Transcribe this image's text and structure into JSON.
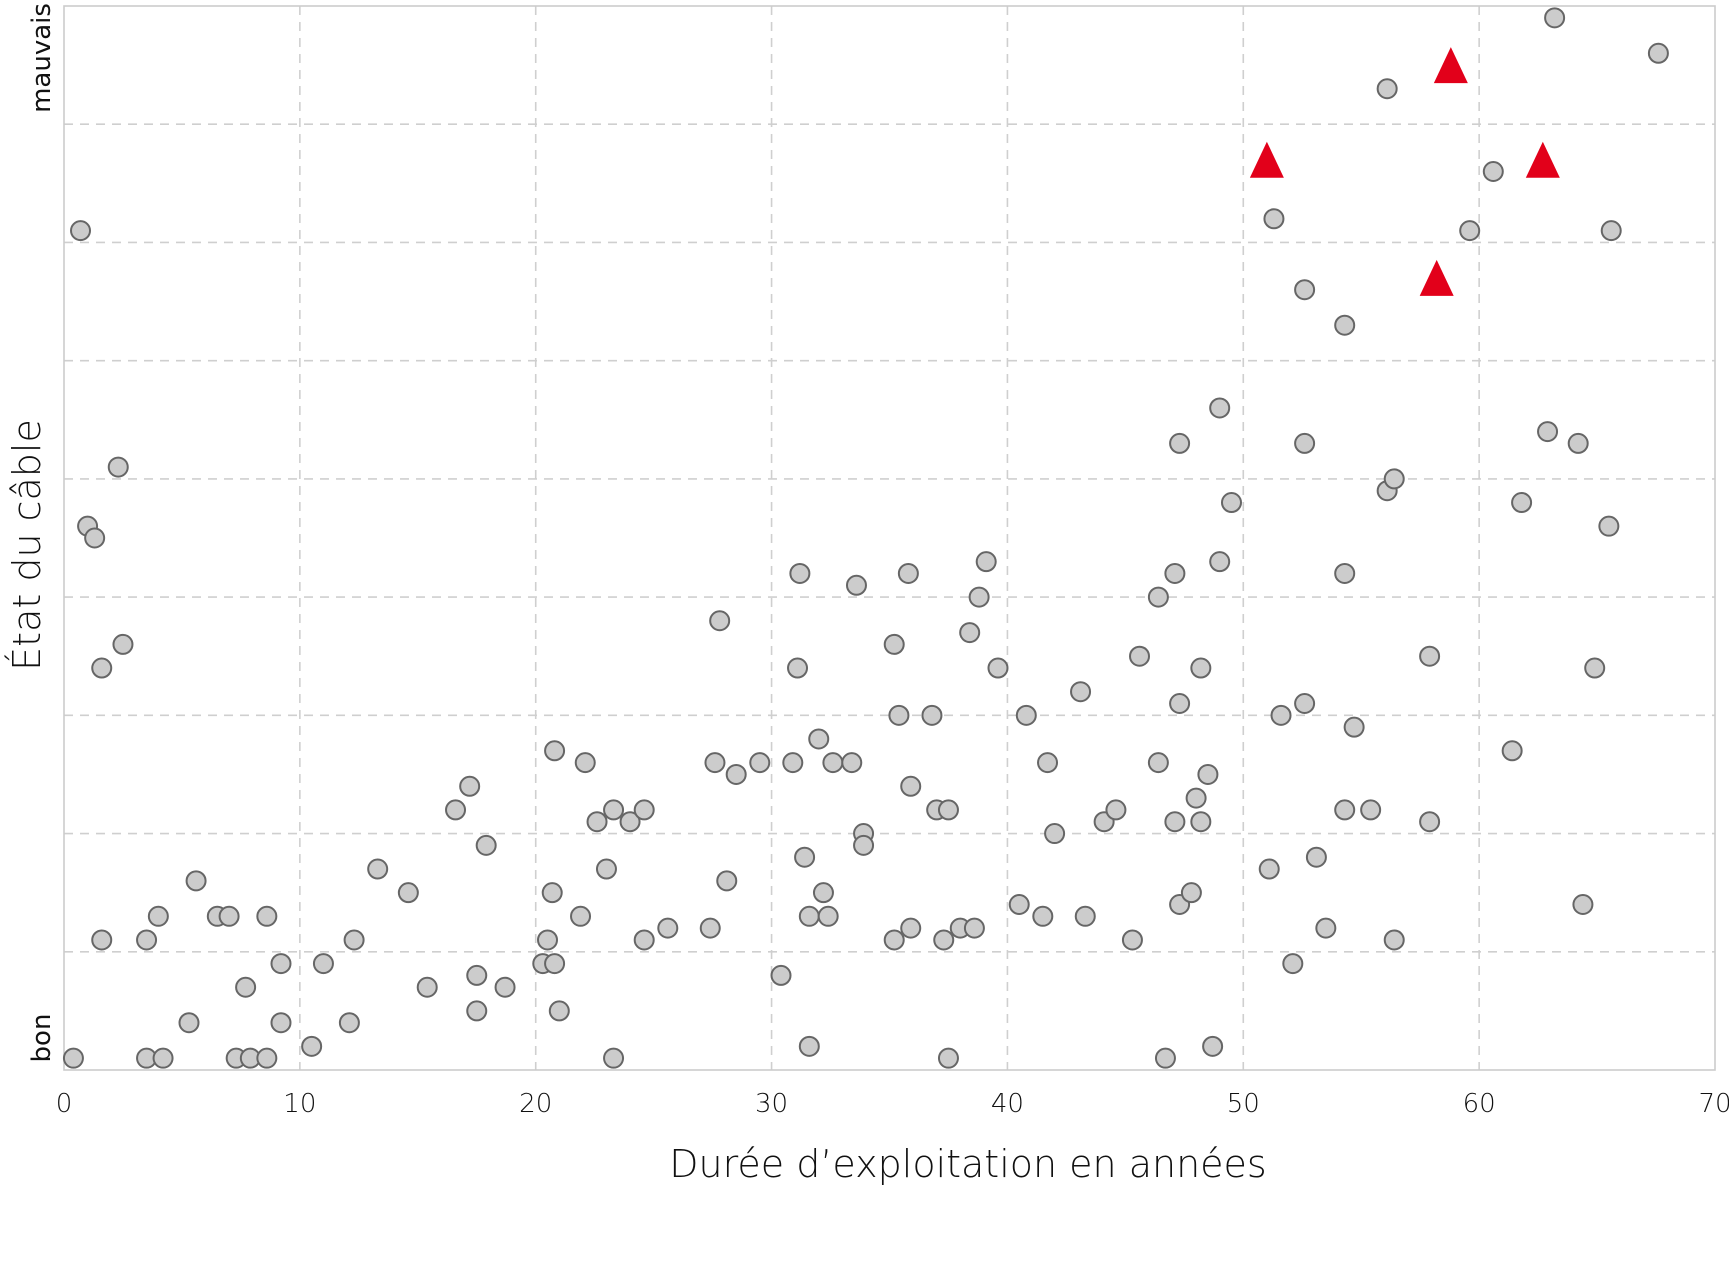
{
  "chart_data": {
    "type": "scatter",
    "xlabel": "Durée d’exploitation en années",
    "ylabel": "État du câble",
    "xlim": [
      0,
      70
    ],
    "xticks": [
      0,
      10,
      20,
      30,
      40,
      50,
      60,
      70
    ],
    "ylim": [
      0,
      9
    ],
    "y_top_label": "mauvais",
    "y_bottom_label": "bon",
    "grid": "dashed",
    "legend": "none",
    "colors": {
      "circles_fill": "#cccccc",
      "circles_stroke": "#666666",
      "triangles": "#e2001a"
    },
    "series": [
      {
        "marker": "circle",
        "points": [
          [
            0.4,
            0.1
          ],
          [
            0.7,
            7.1
          ],
          [
            1.0,
            4.6
          ],
          [
            1.3,
            4.5
          ],
          [
            1.6,
            3.4
          ],
          [
            1.6,
            1.1
          ],
          [
            2.3,
            5.1
          ],
          [
            2.5,
            3.6
          ],
          [
            3.5,
            1.1
          ],
          [
            3.5,
            0.1
          ],
          [
            4.0,
            1.3
          ],
          [
            4.2,
            0.1
          ],
          [
            5.3,
            0.4
          ],
          [
            5.6,
            1.6
          ],
          [
            6.5,
            1.3
          ],
          [
            7.0,
            1.3
          ],
          [
            7.3,
            0.1
          ],
          [
            7.7,
            0.7
          ],
          [
            7.9,
            0.1
          ],
          [
            8.6,
            0.1
          ],
          [
            8.6,
            1.3
          ],
          [
            9.2,
            0.9
          ],
          [
            9.2,
            0.4
          ],
          [
            10.5,
            0.2
          ],
          [
            11.0,
            0.9
          ],
          [
            12.1,
            0.4
          ],
          [
            12.3,
            1.1
          ],
          [
            13.3,
            1.7
          ],
          [
            14.6,
            1.5
          ],
          [
            15.4,
            0.7
          ],
          [
            16.6,
            2.2
          ],
          [
            17.2,
            2.4
          ],
          [
            17.5,
            0.8
          ],
          [
            17.5,
            0.5
          ],
          [
            17.9,
            1.9
          ],
          [
            18.7,
            0.7
          ],
          [
            20.3,
            0.9
          ],
          [
            20.5,
            1.1
          ],
          [
            20.7,
            1.5
          ],
          [
            20.8,
            2.7
          ],
          [
            20.8,
            0.9
          ],
          [
            21.0,
            0.5
          ],
          [
            21.9,
            1.3
          ],
          [
            22.1,
            2.6
          ],
          [
            22.6,
            2.1
          ],
          [
            23.0,
            1.7
          ],
          [
            23.3,
            0.1
          ],
          [
            23.3,
            2.2
          ],
          [
            24.0,
            2.1
          ],
          [
            24.6,
            2.2
          ],
          [
            24.6,
            1.1
          ],
          [
            25.6,
            1.2
          ],
          [
            27.4,
            1.2
          ],
          [
            27.6,
            2.6
          ],
          [
            27.8,
            3.8
          ],
          [
            28.1,
            1.6
          ],
          [
            28.5,
            2.5
          ],
          [
            29.5,
            2.6
          ],
          [
            30.4,
            0.8
          ],
          [
            30.9,
            2.6
          ],
          [
            31.1,
            3.4
          ],
          [
            31.2,
            4.2
          ],
          [
            31.4,
            1.8
          ],
          [
            31.6,
            1.3
          ],
          [
            31.6,
            0.2
          ],
          [
            32.0,
            2.8
          ],
          [
            32.2,
            1.5
          ],
          [
            32.4,
            1.3
          ],
          [
            32.6,
            2.6
          ],
          [
            33.4,
            2.6
          ],
          [
            33.6,
            4.1
          ],
          [
            33.9,
            2.0
          ],
          [
            33.9,
            1.9
          ],
          [
            35.2,
            3.6
          ],
          [
            35.2,
            1.1
          ],
          [
            35.4,
            3.0
          ],
          [
            35.8,
            4.2
          ],
          [
            35.9,
            2.4
          ],
          [
            35.9,
            1.2
          ],
          [
            36.8,
            3.0
          ],
          [
            37.0,
            2.2
          ],
          [
            37.3,
            1.1
          ],
          [
            37.5,
            2.2
          ],
          [
            37.5,
            0.1
          ],
          [
            38.0,
            1.2
          ],
          [
            38.4,
            3.7
          ],
          [
            38.6,
            1.2
          ],
          [
            38.8,
            4.0
          ],
          [
            39.1,
            4.3
          ],
          [
            39.6,
            3.4
          ],
          [
            40.5,
            1.4
          ],
          [
            40.8,
            3.0
          ],
          [
            41.5,
            1.3
          ],
          [
            41.7,
            2.6
          ],
          [
            42.0,
            2.0
          ],
          [
            43.1,
            3.2
          ],
          [
            43.3,
            1.3
          ],
          [
            44.1,
            2.1
          ],
          [
            44.6,
            2.2
          ],
          [
            45.3,
            1.1
          ],
          [
            45.6,
            3.5
          ],
          [
            46.4,
            2.6
          ],
          [
            46.4,
            4.0
          ],
          [
            46.7,
            0.1
          ],
          [
            47.1,
            4.2
          ],
          [
            47.1,
            2.1
          ],
          [
            47.3,
            5.3
          ],
          [
            47.3,
            3.1
          ],
          [
            47.3,
            1.4
          ],
          [
            47.8,
            1.5
          ],
          [
            48.0,
            2.3
          ],
          [
            48.2,
            2.1
          ],
          [
            48.2,
            3.4
          ],
          [
            48.5,
            2.5
          ],
          [
            48.7,
            0.2
          ],
          [
            49.0,
            5.6
          ],
          [
            49.0,
            4.3
          ],
          [
            49.5,
            4.8
          ],
          [
            51.1,
            1.7
          ],
          [
            51.3,
            7.2
          ],
          [
            51.6,
            3.0
          ],
          [
            52.1,
            0.9
          ],
          [
            52.6,
            6.6
          ],
          [
            52.6,
            5.3
          ],
          [
            52.6,
            3.1
          ],
          [
            53.1,
            1.8
          ],
          [
            53.5,
            1.2
          ],
          [
            54.3,
            6.3
          ],
          [
            54.3,
            4.2
          ],
          [
            54.3,
            2.2
          ],
          [
            54.7,
            2.9
          ],
          [
            55.4,
            2.2
          ],
          [
            56.1,
            8.3
          ],
          [
            56.1,
            4.9
          ],
          [
            56.4,
            5.0
          ],
          [
            56.4,
            1.1
          ],
          [
            57.9,
            3.5
          ],
          [
            57.9,
            2.1
          ],
          [
            59.6,
            7.1
          ],
          [
            60.6,
            7.6
          ],
          [
            61.4,
            2.7
          ],
          [
            61.8,
            4.8
          ],
          [
            62.9,
            5.4
          ],
          [
            63.2,
            8.9
          ],
          [
            64.2,
            5.3
          ],
          [
            64.4,
            1.4
          ],
          [
            64.9,
            3.4
          ],
          [
            65.5,
            4.6
          ],
          [
            65.6,
            7.1
          ],
          [
            67.6,
            8.6
          ]
        ]
      },
      {
        "marker": "triangle",
        "points": [
          [
            51.0,
            7.7
          ],
          [
            58.2,
            6.7
          ],
          [
            58.8,
            8.5
          ],
          [
            62.7,
            7.7
          ]
        ]
      }
    ]
  }
}
